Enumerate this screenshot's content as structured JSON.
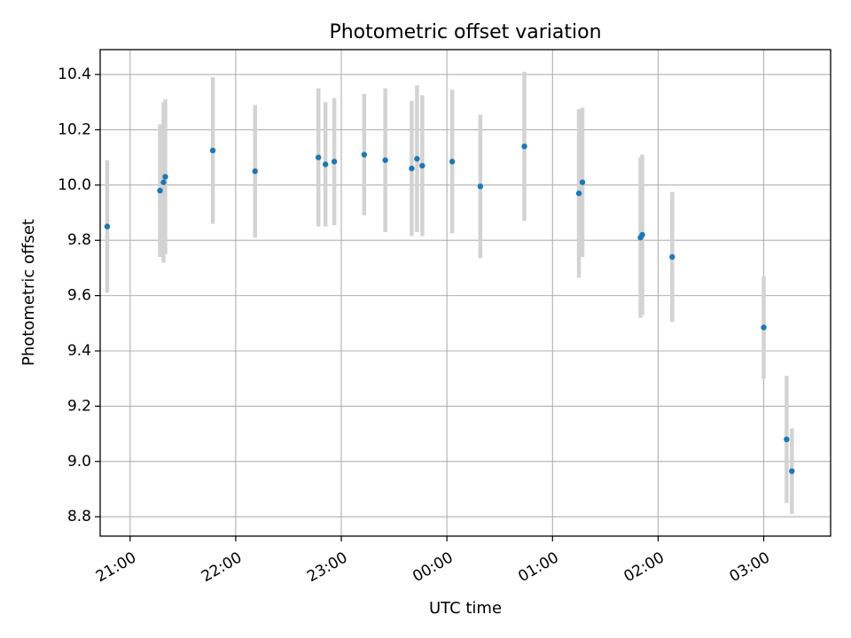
{
  "chart_data": {
    "type": "scatter",
    "title": "Photometric offset variation",
    "xlabel": "UTC time",
    "ylabel": "Photometric offset",
    "grid": true,
    "legend": "none",
    "x_range": [
      "20:43",
      "03:38"
    ],
    "x_ticks": [
      "21:00",
      "22:00",
      "23:00",
      "00:00",
      "01:00",
      "02:00",
      "03:00"
    ],
    "ylim": [
      8.73,
      10.49
    ],
    "y_ticks": [
      8.8,
      9.0,
      9.2,
      9.4,
      9.6,
      9.8,
      10.0,
      10.2,
      10.4
    ],
    "y_tick_labels": [
      "8.8",
      "9.0",
      "9.2",
      "9.4",
      "9.6",
      "9.8",
      "10.0",
      "10.2",
      "10.4"
    ],
    "colors": {
      "point": "#1f77b4",
      "errorbar": "#d3d3d3",
      "grid": "#b0b0b0"
    },
    "series": [
      {
        "error_bars": "symmetric",
        "points": [
          {
            "time": "20:47",
            "y": 9.85,
            "err": 0.24
          },
          {
            "time": "21:17",
            "y": 9.98,
            "err": 0.24
          },
          {
            "time": "21:19",
            "y": 10.01,
            "err": 0.29
          },
          {
            "time": "21:20",
            "y": 10.03,
            "err": 0.28
          },
          {
            "time": "21:47",
            "y": 10.125,
            "err": 0.265
          },
          {
            "time": "22:11",
            "y": 10.05,
            "err": 0.24
          },
          {
            "time": "22:47",
            "y": 10.1,
            "err": 0.25
          },
          {
            "time": "22:51",
            "y": 10.075,
            "err": 0.225
          },
          {
            "time": "22:56",
            "y": 10.085,
            "err": 0.23
          },
          {
            "time": "23:13",
            "y": 10.11,
            "err": 0.22
          },
          {
            "time": "23:25",
            "y": 10.09,
            "err": 0.26
          },
          {
            "time": "23:40",
            "y": 10.06,
            "err": 0.245
          },
          {
            "time": "23:43",
            "y": 10.095,
            "err": 0.265
          },
          {
            "time": "23:46",
            "y": 10.07,
            "err": 0.255
          },
          {
            "time": "00:03",
            "y": 10.085,
            "err": 0.26
          },
          {
            "time": "00:19",
            "y": 9.995,
            "err": 0.26
          },
          {
            "time": "00:44",
            "y": 10.14,
            "err": 0.27
          },
          {
            "time": "01:15",
            "y": 9.97,
            "err": 0.305
          },
          {
            "time": "01:17",
            "y": 10.01,
            "err": 0.27
          },
          {
            "time": "01:50",
            "y": 9.81,
            "err": 0.29
          },
          {
            "time": "01:51",
            "y": 9.82,
            "err": 0.29
          },
          {
            "time": "02:08",
            "y": 9.74,
            "err": 0.235
          },
          {
            "time": "03:00",
            "y": 9.485,
            "err": 0.185
          },
          {
            "time": "03:13",
            "y": 9.08,
            "err": 0.23
          },
          {
            "time": "03:16",
            "y": 8.965,
            "err": 0.155
          }
        ]
      }
    ]
  }
}
